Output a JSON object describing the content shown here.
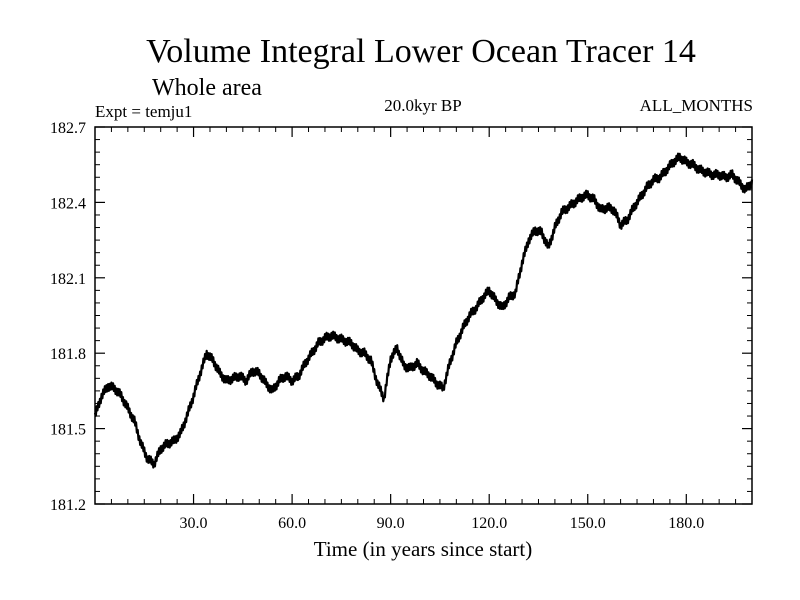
{
  "chart_data": {
    "type": "line",
    "title": "Volume Integral Lower Ocean Tracer 14",
    "subtitle": "Whole area",
    "experiment_label": "Expt = temju1",
    "period_label": "20.0kyr BP",
    "months_label": "ALL_MONTHS",
    "xlabel": "Time (in years since start)",
    "ylabel": "",
    "xlim": [
      0,
      200
    ],
    "ylim": [
      181.2,
      182.7
    ],
    "x_ticks": [
      30,
      60,
      90,
      120,
      150,
      180
    ],
    "x_tick_labels": [
      "30.0",
      "60.0",
      "90.0",
      "120.0",
      "150.0",
      "180.0"
    ],
    "y_ticks": [
      181.2,
      181.5,
      181.8,
      182.1,
      182.4,
      182.7
    ],
    "y_tick_labels": [
      "181.2",
      "181.5",
      "181.8",
      "182.1",
      "182.4",
      "182.7"
    ],
    "series": [
      {
        "name": "Lower Ocean Tracer 14",
        "color": "#000000",
        "x": [
          0,
          2,
          4,
          6,
          8,
          10,
          12,
          14,
          16,
          18,
          20,
          22,
          24,
          26,
          28,
          30,
          32,
          34,
          36,
          38,
          40,
          42,
          44,
          46,
          48,
          50,
          52,
          54,
          56,
          58,
          60,
          62,
          64,
          66,
          68,
          70,
          72,
          74,
          76,
          78,
          80,
          82,
          84,
          86,
          88,
          90,
          92,
          94,
          96,
          98,
          100,
          102,
          104,
          106,
          108,
          110,
          112,
          114,
          116,
          118,
          120,
          122,
          124,
          126,
          128,
          130,
          132,
          134,
          136,
          138,
          140,
          142,
          144,
          146,
          148,
          150,
          152,
          154,
          156,
          158,
          160,
          162,
          164,
          166,
          168,
          170,
          172,
          174,
          176,
          178,
          180,
          182,
          184,
          186,
          188,
          190,
          192,
          194,
          196,
          198,
          200
        ],
        "values": [
          181.55,
          181.63,
          181.67,
          181.66,
          181.63,
          181.58,
          181.53,
          181.44,
          181.38,
          181.36,
          181.42,
          181.44,
          181.45,
          181.48,
          181.55,
          181.63,
          181.72,
          181.8,
          181.77,
          181.72,
          181.69,
          181.7,
          181.71,
          181.69,
          181.73,
          181.72,
          181.68,
          181.65,
          181.69,
          181.71,
          181.69,
          181.71,
          181.76,
          181.8,
          181.84,
          181.86,
          181.87,
          181.86,
          181.85,
          181.84,
          181.81,
          181.8,
          181.77,
          181.68,
          181.62,
          181.78,
          181.82,
          181.75,
          181.74,
          181.76,
          181.73,
          181.71,
          181.68,
          181.66,
          181.76,
          181.84,
          181.9,
          181.95,
          181.98,
          182.02,
          182.05,
          182.01,
          181.98,
          182.02,
          182.04,
          182.16,
          182.25,
          182.29,
          182.28,
          182.22,
          182.3,
          182.36,
          182.38,
          182.4,
          182.42,
          182.43,
          182.41,
          182.37,
          182.38,
          182.37,
          182.31,
          182.33,
          182.38,
          182.42,
          182.46,
          182.49,
          182.5,
          182.53,
          182.56,
          182.58,
          182.56,
          182.55,
          182.53,
          182.52,
          182.51,
          182.51,
          182.5,
          182.51,
          182.48,
          182.45,
          182.48
        ]
      }
    ]
  }
}
